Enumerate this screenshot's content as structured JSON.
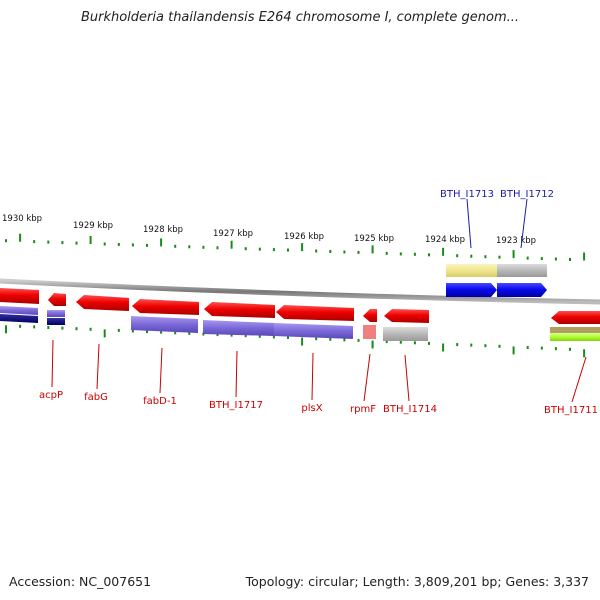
{
  "title": "Burkholderia thailandensis E264 chromosome I, complete genom...",
  "footer": {
    "accession_label": "Accession: NC_007651",
    "stats": "Topology: circular; Length: 3,809,201 bp; Genes: 3,337"
  },
  "scale": {
    "ticks": [
      "1930 kbp",
      "1929 kbp",
      "1928 kbp",
      "1927 kbp",
      "1926 kbp",
      "1925 kbp",
      "1924 kbp",
      "1923 kbp"
    ]
  },
  "genes_top": [
    {
      "label": "BTH_I1713",
      "color": "#1a1aa8"
    },
    {
      "label": "BTH_I1712",
      "color": "#1a1aa8"
    }
  ],
  "genes_bottom": [
    {
      "label": "acpP",
      "color": "#cc0000"
    },
    {
      "label": "fabG",
      "color": "#cc0000"
    },
    {
      "label": "fabD-1",
      "color": "#cc0000"
    },
    {
      "label": "BTH_I1717",
      "color": "#cc0000"
    },
    {
      "label": "plsX",
      "color": "#cc0000"
    },
    {
      "label": "rpmF",
      "color": "#cc0000"
    },
    {
      "label": "BTH_I1714",
      "color": "#cc0000"
    },
    {
      "label": "BTH_I1711",
      "color": "#cc0000"
    }
  ],
  "colors": {
    "reverse_strand": "#ee0000",
    "forward_strand": "#0a0aee",
    "cds_purple": "#7b68d8",
    "cds_gray": "#b8b8b8",
    "cds_yellow": "#f0e68c",
    "cds_green": "#adff2f",
    "tick_green": "#1a8a1a",
    "backbone": "#8a8a8a"
  }
}
